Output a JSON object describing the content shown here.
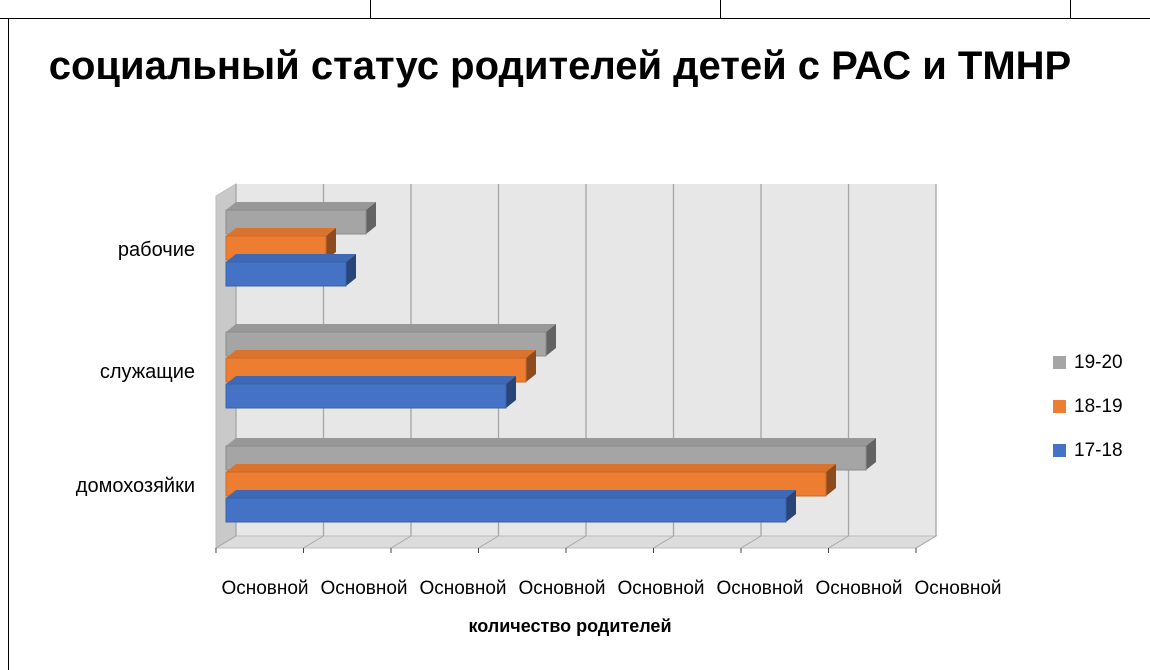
{
  "chart_data": {
    "type": "bar",
    "orientation": "horizontal",
    "style": "3d",
    "title": "социальный статус родителей детей с РАС и ТМНР",
    "xlabel": "количество родителей",
    "ylabel": "",
    "categories": [
      "домохозяйки",
      "служащие",
      "рабочие"
    ],
    "series": [
      {
        "name": "17-18",
        "color": "#4472C4",
        "values": [
          5.6,
          2.8,
          1.2
        ]
      },
      {
        "name": "18-19",
        "color": "#ED7D31",
        "values": [
          6.0,
          3.0,
          1.0
        ]
      },
      {
        "name": "19-20",
        "color": "#A5A5A5",
        "values": [
          6.4,
          3.2,
          1.4
        ]
      }
    ],
    "x_tick_labels": [
      "Основной",
      "Основной",
      "Основной",
      "Основной",
      "Основной",
      "Основной",
      "Основной",
      "Основной"
    ],
    "xlim": [
      0,
      7
    ],
    "grid": true,
    "legend_position": "right"
  }
}
